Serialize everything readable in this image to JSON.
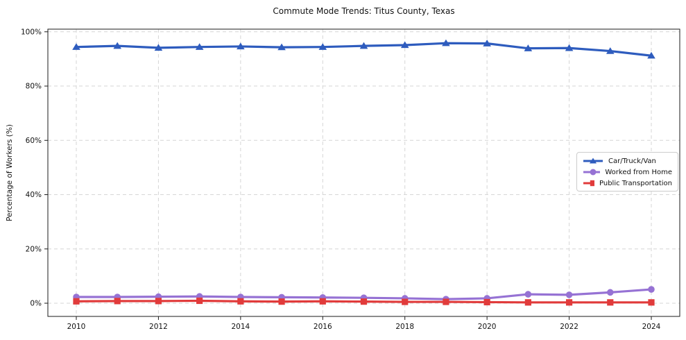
{
  "chart_data": {
    "type": "line",
    "title": "Commute Mode Trends: Titus County, Texas",
    "xlabel": "",
    "ylabel": "Percentage of Workers (%)",
    "x": [
      2010,
      2011,
      2012,
      2013,
      2014,
      2015,
      2016,
      2017,
      2018,
      2019,
      2020,
      2021,
      2022,
      2023,
      2024
    ],
    "x_tick_labels": [
      "2010",
      "2012",
      "2014",
      "2016",
      "2018",
      "2020",
      "2022",
      "2024"
    ],
    "y_ticks": [
      0,
      20,
      40,
      60,
      80,
      100
    ],
    "y_tick_suffix": "%",
    "ylim": [
      -5,
      101
    ],
    "grid": "dashed, horizontal and vertical",
    "legend_position": "center-right",
    "series": [
      {
        "name": "Car/Truck/Van",
        "color": "#2e5cbe",
        "marker": "triangle",
        "values": [
          94.4,
          94.8,
          94.1,
          94.4,
          94.6,
          94.3,
          94.4,
          94.8,
          95.1,
          95.8,
          95.7,
          93.9,
          94.0,
          92.9,
          91.2
        ]
      },
      {
        "name": "Worked from Home",
        "color": "#9672d4",
        "marker": "circle",
        "values": [
          2.3,
          2.3,
          2.4,
          2.5,
          2.3,
          2.2,
          2.1,
          2.0,
          1.8,
          1.5,
          1.8,
          3.3,
          3.1,
          4.0,
          5.1
        ]
      },
      {
        "name": "Public Transportation",
        "color": "#e13b3b",
        "marker": "square",
        "values": [
          0.7,
          0.8,
          0.8,
          0.9,
          0.7,
          0.6,
          0.7,
          0.6,
          0.5,
          0.5,
          0.4,
          0.3,
          0.3,
          0.3,
          0.3
        ]
      }
    ]
  }
}
